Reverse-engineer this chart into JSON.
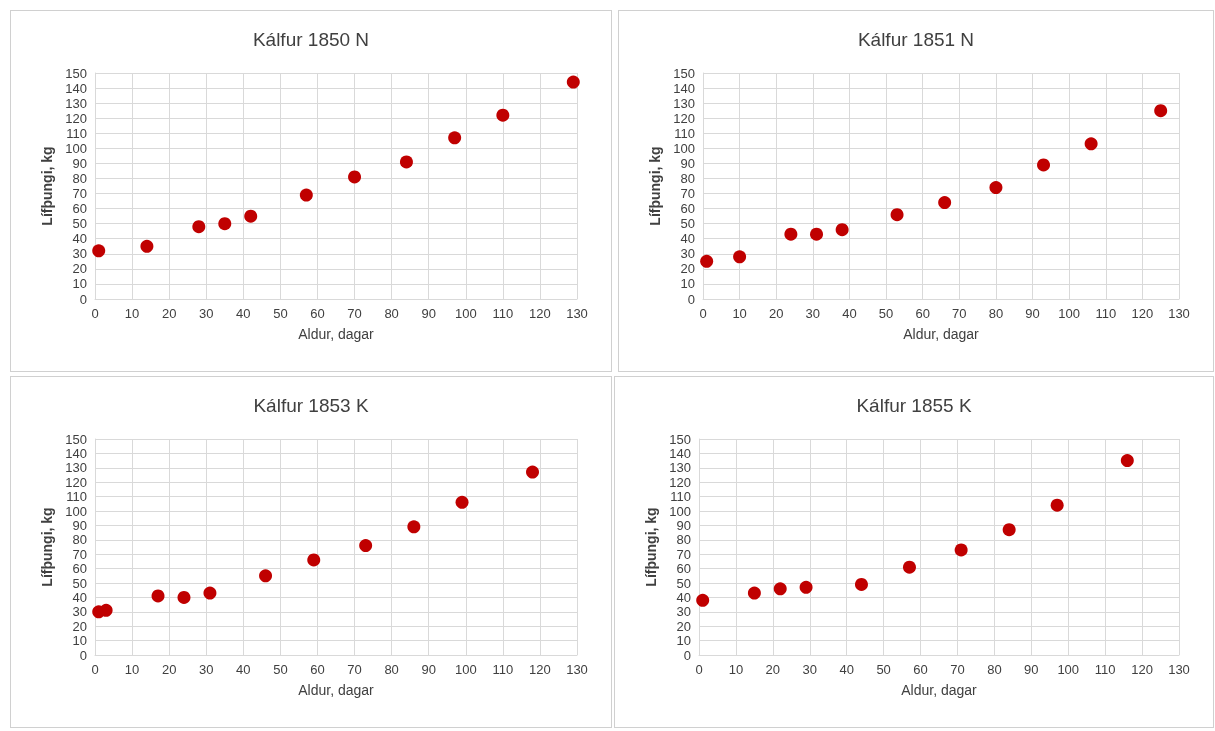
{
  "chart_data": [
    {
      "type": "scatter",
      "title": "Kálfur 1850 N",
      "xlabel": "Aldur, dagar",
      "ylabel": "Lífþungi, kg",
      "marker": "circle",
      "grid": true,
      "xlim": [
        0,
        130
      ],
      "ylim": [
        0,
        150
      ],
      "xticks": [
        0,
        10,
        20,
        30,
        40,
        50,
        60,
        70,
        80,
        90,
        100,
        110,
        120,
        130
      ],
      "yticks": [
        0,
        10,
        20,
        30,
        40,
        50,
        60,
        70,
        80,
        90,
        100,
        110,
        120,
        130,
        140,
        150
      ],
      "series": [
        {
          "color": "#c00000",
          "x": [
            1,
            14,
            28,
            35,
            42,
            57,
            70,
            84,
            97,
            110,
            129
          ],
          "values": [
            32,
            35,
            48,
            50,
            55,
            69,
            81,
            91,
            107,
            122,
            144
          ]
        }
      ]
    },
    {
      "type": "scatter",
      "title": "Kálfur 1851 N",
      "xlabel": "Aldur, dagar",
      "ylabel": "Lífþungi, kg",
      "marker": "circle",
      "grid": true,
      "xlim": [
        0,
        130
      ],
      "ylim": [
        0,
        150
      ],
      "xticks": [
        0,
        10,
        20,
        30,
        40,
        50,
        60,
        70,
        80,
        90,
        100,
        110,
        120,
        130
      ],
      "yticks": [
        0,
        10,
        20,
        30,
        40,
        50,
        60,
        70,
        80,
        90,
        100,
        110,
        120,
        130,
        140,
        150
      ],
      "series": [
        {
          "color": "#c00000",
          "x": [
            1,
            10,
            24,
            31,
            38,
            53,
            66,
            80,
            93,
            106,
            125
          ],
          "values": [
            25,
            28,
            43,
            43,
            46,
            56,
            64,
            74,
            89,
            103,
            125
          ]
        }
      ]
    },
    {
      "type": "scatter",
      "title": "Kálfur 1853 K",
      "xlabel": "Aldur, dagar",
      "ylabel": "Lífþungi, kg",
      "marker": "circle",
      "grid": true,
      "xlim": [
        0,
        130
      ],
      "ylim": [
        0,
        150
      ],
      "xticks": [
        0,
        10,
        20,
        30,
        40,
        50,
        60,
        70,
        80,
        90,
        100,
        110,
        120,
        130
      ],
      "yticks": [
        0,
        10,
        20,
        30,
        40,
        50,
        60,
        70,
        80,
        90,
        100,
        110,
        120,
        130,
        140,
        150
      ],
      "series": [
        {
          "color": "#c00000",
          "x": [
            1,
            3,
            17,
            24,
            31,
            46,
            59,
            73,
            86,
            99,
            118
          ],
          "values": [
            30,
            31,
            41,
            40,
            43,
            55,
            66,
            76,
            89,
            106,
            127
          ]
        }
      ]
    },
    {
      "type": "scatter",
      "title": "Kálfur 1855 K",
      "xlabel": "Aldur, dagar",
      "ylabel": "Lífþungi, kg",
      "marker": "circle",
      "grid": true,
      "xlim": [
        0,
        130
      ],
      "ylim": [
        0,
        150
      ],
      "xticks": [
        0,
        10,
        20,
        30,
        40,
        50,
        60,
        70,
        80,
        90,
        100,
        110,
        120,
        130
      ],
      "yticks": [
        0,
        10,
        20,
        30,
        40,
        50,
        60,
        70,
        80,
        90,
        100,
        110,
        120,
        130,
        140,
        150
      ],
      "series": [
        {
          "color": "#c00000",
          "x": [
            1,
            15,
            22,
            29,
            44,
            57,
            71,
            84,
            97,
            116
          ],
          "values": [
            38,
            43,
            46,
            47,
            49,
            61,
            73,
            87,
            104,
            135
          ]
        }
      ]
    }
  ]
}
